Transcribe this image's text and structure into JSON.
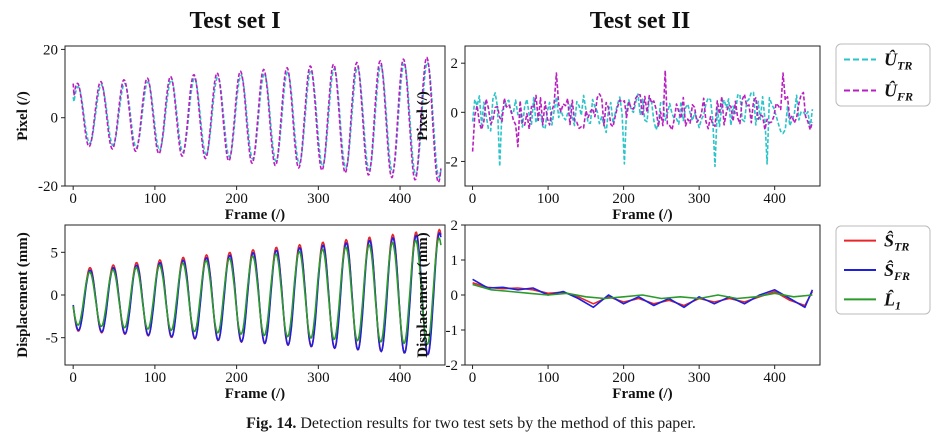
{
  "columns": [
    {
      "title": "Test set I"
    },
    {
      "title": "Test set II"
    }
  ],
  "legend_top": [
    {
      "sym": "Û",
      "sub": "TR",
      "color": "#2bc4c8",
      "dash": true
    },
    {
      "sym": "Û",
      "sub": "FR",
      "color": "#b91fc0",
      "dash": true
    }
  ],
  "legend_bottom": [
    {
      "sym": "Ŝ",
      "sub": "TR",
      "color": "#e8262a",
      "dash": false
    },
    {
      "sym": "Ŝ",
      "sub": "FR",
      "color": "#1f1fe0",
      "dash": false
    },
    {
      "sym": "L̂",
      "sub": "1",
      "color": "#2a9a2a",
      "dash": false
    }
  ],
  "chart_data": [
    {
      "type": "line",
      "panel": "top-left",
      "xlabel": "Frame (/)",
      "ylabel": "Pixel (/)",
      "xlim": [
        -10,
        455
      ],
      "ylim": [
        -20,
        21
      ],
      "xticks": [
        0,
        100,
        200,
        300,
        400
      ],
      "yticks": [
        -20,
        0,
        20
      ],
      "x_range": [
        0,
        450
      ],
      "series": [
        {
          "name": "Û_TR",
          "color": "#2bc4c8",
          "dash": true,
          "model": {
            "start_value": 6,
            "period": 28.5,
            "phase_deg": 15,
            "offset_start": 1,
            "offset_end": -0.5,
            "amp_start": 8,
            "amp_end": 17,
            "note": "oscillation"
          }
        },
        {
          "name": "Û_FR",
          "color": "#b91fc0",
          "dash": true,
          "model": {
            "start_value": 10,
            "period": 28.5,
            "phase_deg": 25,
            "offset_start": 1,
            "offset_end": -0.5,
            "amp_start": 9,
            "amp_end": 18.5,
            "note": "oscillation"
          }
        }
      ]
    },
    {
      "type": "line",
      "panel": "top-right",
      "xlabel": "Frame (/)",
      "ylabel": "Pixel (/)",
      "xlim": [
        -10,
        460
      ],
      "ylim": [
        -3,
        2.7
      ],
      "xticks": [
        0,
        100,
        200,
        300,
        400
      ],
      "yticks": [
        -2,
        0,
        2
      ],
      "x_range": [
        0,
        450
      ],
      "series": [
        {
          "name": "Û_TR",
          "color": "#2bc4c8",
          "dash": true,
          "model": {
            "amp": 0.9,
            "seed": 7,
            "spikes": [
              [
                37,
                -2.2
              ],
              [
                200,
                -2.1
              ],
              [
                320,
                -2.2
              ],
              [
                390,
                -2.1
              ]
            ],
            "note": "noise"
          }
        },
        {
          "name": "Û_FR",
          "color": "#b91fc0",
          "dash": true,
          "model": {
            "amp": 0.85,
            "seed": 13,
            "spikes": [
              [
                0,
                -1.6
              ],
              [
                60,
                -1.4
              ],
              [
                110,
                1.6
              ],
              [
                255,
                1.7
              ],
              [
                410,
                1.6
              ]
            ],
            "note": "noise"
          }
        }
      ]
    },
    {
      "type": "line",
      "panel": "bottom-left",
      "xlabel": "Frame (/)",
      "ylabel": "Displacement (mm)",
      "xlim": [
        -10,
        455
      ],
      "ylim": [
        -8.2,
        8.2
      ],
      "xticks": [
        0,
        100,
        200,
        300,
        400
      ],
      "yticks": [
        -5,
        0,
        5
      ],
      "x_range": [
        0,
        450
      ],
      "series": [
        {
          "name": "Ŝ_TR",
          "color": "#e8262a",
          "dash": false,
          "model": {
            "period": 28.5,
            "phase_deg": 190,
            "offset_start": -0.6,
            "offset_end": 0.3,
            "amp_start": 3.6,
            "amp_end": 7.4
          }
        },
        {
          "name": "Ŝ_FR",
          "color": "#1f1fe0",
          "dash": false,
          "model": {
            "period": 28.5,
            "phase_deg": 188,
            "offset_start": -0.7,
            "offset_end": 0.1,
            "amp_start": 3.4,
            "amp_end": 7.2
          }
        },
        {
          "name": "L̂_1",
          "color": "#2a9a2a",
          "dash": false,
          "model": {
            "period": 28.5,
            "phase_deg": 196,
            "offset_start": -0.5,
            "offset_end": 0.4,
            "amp_start": 3.0,
            "amp_end": 6.3
          }
        }
      ]
    },
    {
      "type": "line",
      "panel": "bottom-right",
      "xlabel": "Frame (/)",
      "ylabel": "Displacement (mm)",
      "xlim": [
        -10,
        460
      ],
      "ylim": [
        -2,
        2
      ],
      "xticks": [
        0,
        100,
        200,
        300,
        400
      ],
      "yticks": [
        -2,
        -1,
        0,
        1,
        2
      ],
      "x_range": [
        0,
        450
      ],
      "series": [
        {
          "name": "Ŝ_TR",
          "color": "#e8262a",
          "dash": false,
          "points": [
            [
              0,
              0.35
            ],
            [
              20,
              0.22
            ],
            [
              40,
              0.18
            ],
            [
              60,
              0.2
            ],
            [
              80,
              0.15
            ],
            [
              100,
              0.05
            ],
            [
              120,
              0.08
            ],
            [
              140,
              -0.05
            ],
            [
              160,
              -0.25
            ],
            [
              180,
              -0.05
            ],
            [
              200,
              -0.2
            ],
            [
              220,
              -0.1
            ],
            [
              240,
              -0.25
            ],
            [
              260,
              -0.15
            ],
            [
              280,
              -0.3
            ],
            [
              300,
              -0.1
            ],
            [
              320,
              -0.2
            ],
            [
              340,
              -0.1
            ],
            [
              360,
              -0.2
            ],
            [
              380,
              -0.05
            ],
            [
              400,
              0.1
            ],
            [
              420,
              -0.15
            ],
            [
              440,
              -0.3
            ],
            [
              450,
              0.1
            ]
          ]
        },
        {
          "name": "Ŝ_FR",
          "color": "#1f1fe0",
          "dash": false,
          "points": [
            [
              0,
              0.45
            ],
            [
              20,
              0.2
            ],
            [
              40,
              0.22
            ],
            [
              60,
              0.15
            ],
            [
              80,
              0.2
            ],
            [
              100,
              0.0
            ],
            [
              120,
              0.1
            ],
            [
              140,
              -0.1
            ],
            [
              160,
              -0.35
            ],
            [
              180,
              0.0
            ],
            [
              200,
              -0.25
            ],
            [
              220,
              -0.05
            ],
            [
              240,
              -0.3
            ],
            [
              260,
              -0.1
            ],
            [
              280,
              -0.35
            ],
            [
              300,
              -0.05
            ],
            [
              320,
              -0.25
            ],
            [
              340,
              -0.05
            ],
            [
              360,
              -0.25
            ],
            [
              380,
              0.0
            ],
            [
              400,
              0.15
            ],
            [
              420,
              -0.1
            ],
            [
              440,
              -0.35
            ],
            [
              450,
              0.15
            ]
          ]
        },
        {
          "name": "L̂_1",
          "color": "#2a9a2a",
          "dash": false,
          "points": [
            [
              0,
              0.3
            ],
            [
              25,
              0.15
            ],
            [
              50,
              0.1
            ],
            [
              75,
              0.05
            ],
            [
              100,
              0.0
            ],
            [
              125,
              0.05
            ],
            [
              150,
              -0.05
            ],
            [
              175,
              -0.1
            ],
            [
              200,
              -0.05
            ],
            [
              225,
              0.0
            ],
            [
              250,
              -0.1
            ],
            [
              275,
              -0.05
            ],
            [
              300,
              -0.1
            ],
            [
              325,
              0.0
            ],
            [
              350,
              -0.1
            ],
            [
              375,
              -0.05
            ],
            [
              400,
              0.05
            ],
            [
              425,
              -0.05
            ],
            [
              450,
              0.0
            ]
          ]
        }
      ]
    }
  ],
  "caption": {
    "label": "Fig. 14.",
    "text": " Detection results for two test sets by the method of this paper."
  }
}
